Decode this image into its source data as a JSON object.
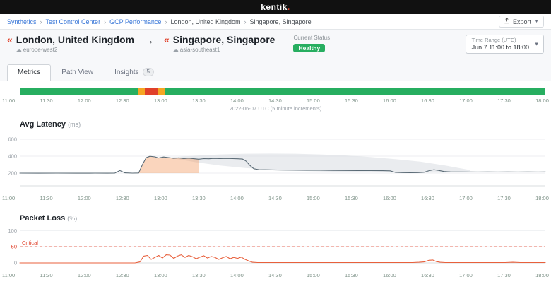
{
  "brand": {
    "name": "kentik",
    "dot": "."
  },
  "breadcrumb": {
    "items": [
      {
        "label": "Synthetics",
        "link": true
      },
      {
        "label": "Test Control Center",
        "link": true
      },
      {
        "label": "GCP Performance",
        "link": true
      },
      {
        "label": "London, United Kingdom",
        "link": false
      },
      {
        "label": "Singapore, Singapore",
        "link": false
      }
    ]
  },
  "toolbar": {
    "export_label": "Export"
  },
  "header": {
    "origin": {
      "title": "London, United Kingdom",
      "region": "europe-west2"
    },
    "destination": {
      "title": "Singapore, Singapore",
      "region": "asia-southeast1"
    },
    "status": {
      "label": "Current Status",
      "value": "Healthy"
    },
    "time_range": {
      "label": "Time Range (UTC)",
      "value": "Jun 7 11:00 to 18:00"
    }
  },
  "tabs": {
    "items": [
      {
        "label": "Metrics",
        "active": true
      },
      {
        "label": "Path View",
        "active": false
      },
      {
        "label": "Insights",
        "active": false,
        "badge": "5"
      }
    ]
  },
  "time_axis": {
    "ticks": [
      "11:00",
      "11:30",
      "12:00",
      "12:30",
      "13:00",
      "13:30",
      "14:00",
      "14:30",
      "15:00",
      "15:30",
      "16:00",
      "16:30",
      "17:00",
      "17:30",
      "18:00"
    ]
  },
  "chart_data": [
    {
      "id": "status_timeline",
      "type": "status-timeline",
      "xlim": [
        0,
        420
      ],
      "caption": "2022-06-07 UTC (5 minute increments)",
      "colors": {
        "healthy": "#27ae60",
        "warning": "#f5a623",
        "critical": "#e0402a"
      },
      "segments": [
        {
          "from": 0,
          "to": 95,
          "status": "healthy"
        },
        {
          "from": 95,
          "to": 100,
          "status": "warning"
        },
        {
          "from": 100,
          "to": 110,
          "status": "critical"
        },
        {
          "from": 110,
          "to": 116,
          "status": "warning"
        },
        {
          "from": 116,
          "to": 420,
          "status": "healthy"
        }
      ]
    },
    {
      "id": "avg_latency",
      "type": "line",
      "title": "Avg Latency",
      "unit": "(ms)",
      "xlim": [
        0,
        420
      ],
      "ylim": [
        50,
        650
      ],
      "yticks": [
        200,
        400,
        600
      ],
      "line_color": "#5b6b76",
      "series": [
        [
          0,
          200
        ],
        [
          15,
          199
        ],
        [
          30,
          200
        ],
        [
          45,
          199
        ],
        [
          60,
          200
        ],
        [
          70,
          199
        ],
        [
          76,
          201
        ],
        [
          80,
          230
        ],
        [
          84,
          203
        ],
        [
          90,
          200
        ],
        [
          95,
          202
        ],
        [
          98,
          300
        ],
        [
          101,
          382
        ],
        [
          104,
          398
        ],
        [
          108,
          392
        ],
        [
          111,
          378
        ],
        [
          115,
          390
        ],
        [
          119,
          383
        ],
        [
          123,
          374
        ],
        [
          127,
          380
        ],
        [
          131,
          371
        ],
        [
          135,
          377
        ],
        [
          139,
          370
        ],
        [
          143,
          364
        ],
        [
          147,
          371
        ],
        [
          151,
          369
        ],
        [
          155,
          373
        ],
        [
          160,
          371
        ],
        [
          165,
          373
        ],
        [
          170,
          371
        ],
        [
          174,
          369
        ],
        [
          178,
          366
        ],
        [
          181,
          340
        ],
        [
          184,
          290
        ],
        [
          187,
          252
        ],
        [
          191,
          242
        ],
        [
          196,
          240
        ],
        [
          202,
          238
        ],
        [
          210,
          236
        ],
        [
          220,
          235
        ],
        [
          230,
          234
        ],
        [
          240,
          233
        ],
        [
          250,
          232
        ],
        [
          260,
          231
        ],
        [
          270,
          230
        ],
        [
          280,
          229
        ],
        [
          290,
          228
        ],
        [
          296,
          227
        ],
        [
          300,
          209
        ],
        [
          306,
          206
        ],
        [
          312,
          205
        ],
        [
          318,
          206
        ],
        [
          323,
          210
        ],
        [
          327,
          228
        ],
        [
          331,
          240
        ],
        [
          335,
          231
        ],
        [
          339,
          219
        ],
        [
          344,
          215
        ],
        [
          350,
          214
        ],
        [
          358,
          214
        ],
        [
          366,
          213
        ],
        [
          374,
          214
        ],
        [
          382,
          213
        ],
        [
          390,
          214
        ],
        [
          398,
          213
        ],
        [
          406,
          214
        ],
        [
          414,
          213
        ],
        [
          420,
          214
        ]
      ],
      "band": {
        "x": [
          120,
          140,
          160,
          180,
          200,
          220,
          240,
          260,
          280,
          300,
          320,
          340,
          360
        ],
        "upper": [
          385,
          405,
          420,
          428,
          430,
          428,
          420,
          408,
          390,
          365,
          335,
          290,
          235
        ],
        "lower": [
          380,
          330,
          290,
          260,
          240,
          228,
          220,
          214,
          210,
          207,
          206,
          207,
          225
        ],
        "color": "#d8dde2"
      },
      "highlight": {
        "from": 95,
        "to": 145,
        "baseline": 200,
        "color": "rgba(243,150,90,0.40)"
      }
    },
    {
      "id": "packet_loss",
      "type": "line",
      "title": "Packet Loss",
      "unit": "(%)",
      "xlim": [
        0,
        420
      ],
      "ylim": [
        0,
        105
      ],
      "yticks": [
        0,
        50,
        100
      ],
      "critical": {
        "value": 50,
        "label": "Critical",
        "color": "#e0402a"
      },
      "line_color": "#e8603c",
      "series": [
        [
          0,
          0
        ],
        [
          12,
          0
        ],
        [
          24,
          0
        ],
        [
          36,
          0
        ],
        [
          48,
          0
        ],
        [
          60,
          0
        ],
        [
          72,
          0
        ],
        [
          84,
          0
        ],
        [
          92,
          0
        ],
        [
          96,
          3
        ],
        [
          99,
          21
        ],
        [
          102,
          23
        ],
        [
          105,
          11
        ],
        [
          108,
          17
        ],
        [
          111,
          23
        ],
        [
          114,
          15
        ],
        [
          117,
          25
        ],
        [
          120,
          24
        ],
        [
          123,
          14
        ],
        [
          126,
          21
        ],
        [
          129,
          25
        ],
        [
          132,
          17
        ],
        [
          135,
          23
        ],
        [
          138,
          19
        ],
        [
          141,
          13
        ],
        [
          144,
          18
        ],
        [
          147,
          22
        ],
        [
          150,
          15
        ],
        [
          153,
          20
        ],
        [
          156,
          17
        ],
        [
          159,
          11
        ],
        [
          162,
          16
        ],
        [
          165,
          20
        ],
        [
          168,
          13
        ],
        [
          171,
          17
        ],
        [
          174,
          14
        ],
        [
          177,
          18
        ],
        [
          180,
          11
        ],
        [
          183,
          6
        ],
        [
          186,
          2
        ],
        [
          190,
          1
        ],
        [
          196,
          1
        ],
        [
          204,
          1
        ],
        [
          212,
          1
        ],
        [
          220,
          1
        ],
        [
          228,
          1
        ],
        [
          236,
          1
        ],
        [
          244,
          1
        ],
        [
          252,
          1
        ],
        [
          260,
          1
        ],
        [
          268,
          1
        ],
        [
          276,
          1
        ],
        [
          284,
          1
        ],
        [
          292,
          1
        ],
        [
          300,
          1
        ],
        [
          308,
          1
        ],
        [
          314,
          1
        ],
        [
          319,
          2
        ],
        [
          323,
          3
        ],
        [
          327,
          8
        ],
        [
          330,
          9
        ],
        [
          333,
          4
        ],
        [
          336,
          2
        ],
        [
          340,
          1
        ],
        [
          348,
          1
        ],
        [
          356,
          1
        ],
        [
          364,
          1
        ],
        [
          372,
          1
        ],
        [
          380,
          1
        ],
        [
          388,
          1
        ],
        [
          394,
          2
        ],
        [
          400,
          1
        ],
        [
          408,
          1
        ],
        [
          414,
          1
        ],
        [
          420,
          1
        ]
      ]
    }
  ]
}
